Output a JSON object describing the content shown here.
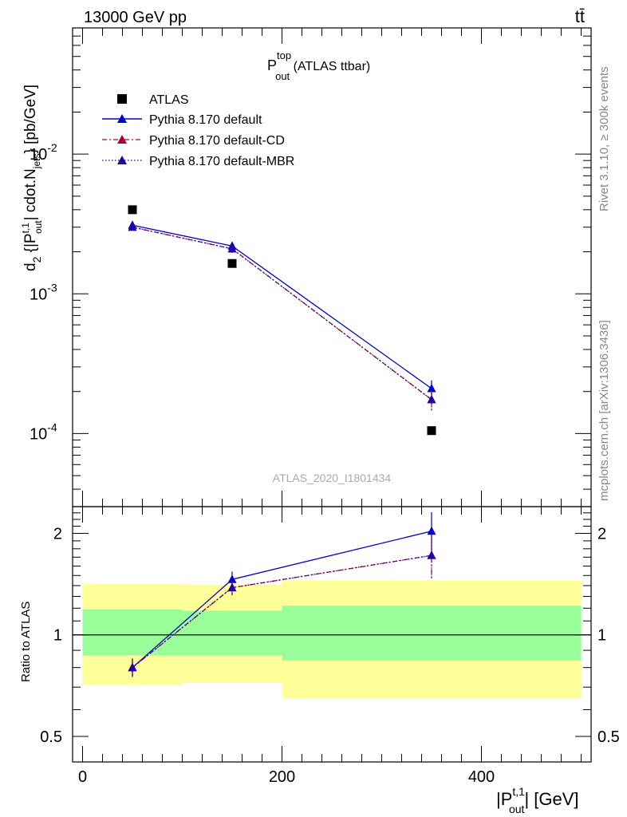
{
  "header": {
    "left": "13000 GeV pp",
    "right": "tt̄"
  },
  "side": {
    "rivet": "Rivet 3.1.10, ≥ 300k events",
    "mcplots": "mcplots.cern.ch [arXiv:1306.3436]"
  },
  "chart_data": [
    {
      "type": "scatter",
      "title": {
        "main": "P",
        "sup": "top",
        "sub": "out",
        "rest": " (ATLAS ttbar)"
      },
      "watermark": "ATLAS_2020_I1801434",
      "ylabel": "d²σ^{fid} / d²{|P_out^{t,1}| cdot.N_jets} [pb/GeV]",
      "yscale": "log",
      "ylim": [
        3e-05,
        0.08
      ],
      "xlim": [
        -10,
        510
      ],
      "yticklabels": [
        {
          "mant": "10",
          "exp": "-2",
          "value": 0.01
        },
        {
          "mant": "10",
          "exp": "-3",
          "value": 0.001
        },
        {
          "mant": "10",
          "exp": "-4",
          "value": 0.0001
        }
      ],
      "legend": {
        "placement": "top-left",
        "entries": [
          "ATLAS",
          "Pythia 8.170 default",
          "Pythia 8.170 default-CD",
          "Pythia 8.170 default-MBR"
        ]
      },
      "series": [
        {
          "name": "ATLAS",
          "color": "#000000",
          "marker": "square",
          "x": [
            50,
            150,
            350
          ],
          "y": [
            0.004,
            0.00165,
            0.000105
          ]
        },
        {
          "name": "Pythia 8.170 default",
          "color": "#0000cc",
          "marker": "triangle",
          "line": "solid",
          "x": [
            50,
            150,
            350
          ],
          "y": [
            0.0031,
            0.0022,
            0.00021
          ],
          "err": [
            0.00015,
            0.00015,
            3e-05
          ]
        },
        {
          "name": "Pythia 8.170 default-CD",
          "color": "#aa0033",
          "marker": "triangle",
          "line": "dashdot",
          "x": [
            50,
            150,
            350
          ],
          "y": [
            0.003,
            0.0021,
            0.000175
          ],
          "err": [
            0.00012,
            0.00013,
            3e-05
          ]
        },
        {
          "name": "Pythia 8.170 default-MBR",
          "color": "#2200aa",
          "marker": "triangle",
          "line": "dotted",
          "x": [
            50,
            150,
            350
          ],
          "y": [
            0.003,
            0.0021,
            0.000175
          ],
          "err": [
            0.00012,
            0.00013,
            3e-05
          ]
        }
      ]
    },
    {
      "type": "scatter",
      "ylabel": "Ratio to ATLAS",
      "xlabel": {
        "pre": "|P",
        "sup": "t,1",
        "sub": "out",
        "post": "| [GeV]"
      },
      "yscale": "log",
      "ylim": [
        0.42,
        2.4
      ],
      "xlim": [
        -10,
        510
      ],
      "xticks": [
        0,
        200,
        400
      ],
      "xticklabels": [
        "0",
        "200",
        "400"
      ],
      "yticks": [
        0.5,
        1,
        2
      ],
      "yticklabels": [
        "0.5",
        "1",
        "2"
      ],
      "bands": [
        {
          "x": [
            0,
            100
          ],
          "yellow": [
            0.71,
            1.42
          ],
          "green": [
            0.87,
            1.19
          ]
        },
        {
          "x": [
            100,
            200
          ],
          "yellow": [
            0.72,
            1.41
          ],
          "green": [
            0.87,
            1.18
          ]
        },
        {
          "x": [
            200,
            500
          ],
          "yellow": [
            0.65,
            1.45
          ],
          "green": [
            0.84,
            1.22
          ]
        }
      ],
      "series": [
        {
          "name": "Pythia 8.170 default",
          "color": "#0000cc",
          "marker": "triangle",
          "line": "solid",
          "x": [
            50,
            150,
            350
          ],
          "y": [
            0.8,
            1.46,
            2.03
          ],
          "err": [
            0.05,
            0.08,
            0.28
          ]
        },
        {
          "name": "Pythia 8.170 default-CD",
          "color": "#aa0033",
          "marker": "triangle",
          "line": "dashdot",
          "x": [
            50,
            150,
            350
          ],
          "y": [
            0.8,
            1.38,
            1.72
          ],
          "err": [
            0.05,
            0.07,
            0.25
          ]
        },
        {
          "name": "Pythia 8.170 default-MBR",
          "color": "#2200aa",
          "marker": "triangle",
          "line": "dotted",
          "x": [
            50,
            150,
            350
          ],
          "y": [
            0.8,
            1.38,
            1.72
          ],
          "err": [
            0.05,
            0.07,
            0.25
          ]
        }
      ]
    }
  ]
}
